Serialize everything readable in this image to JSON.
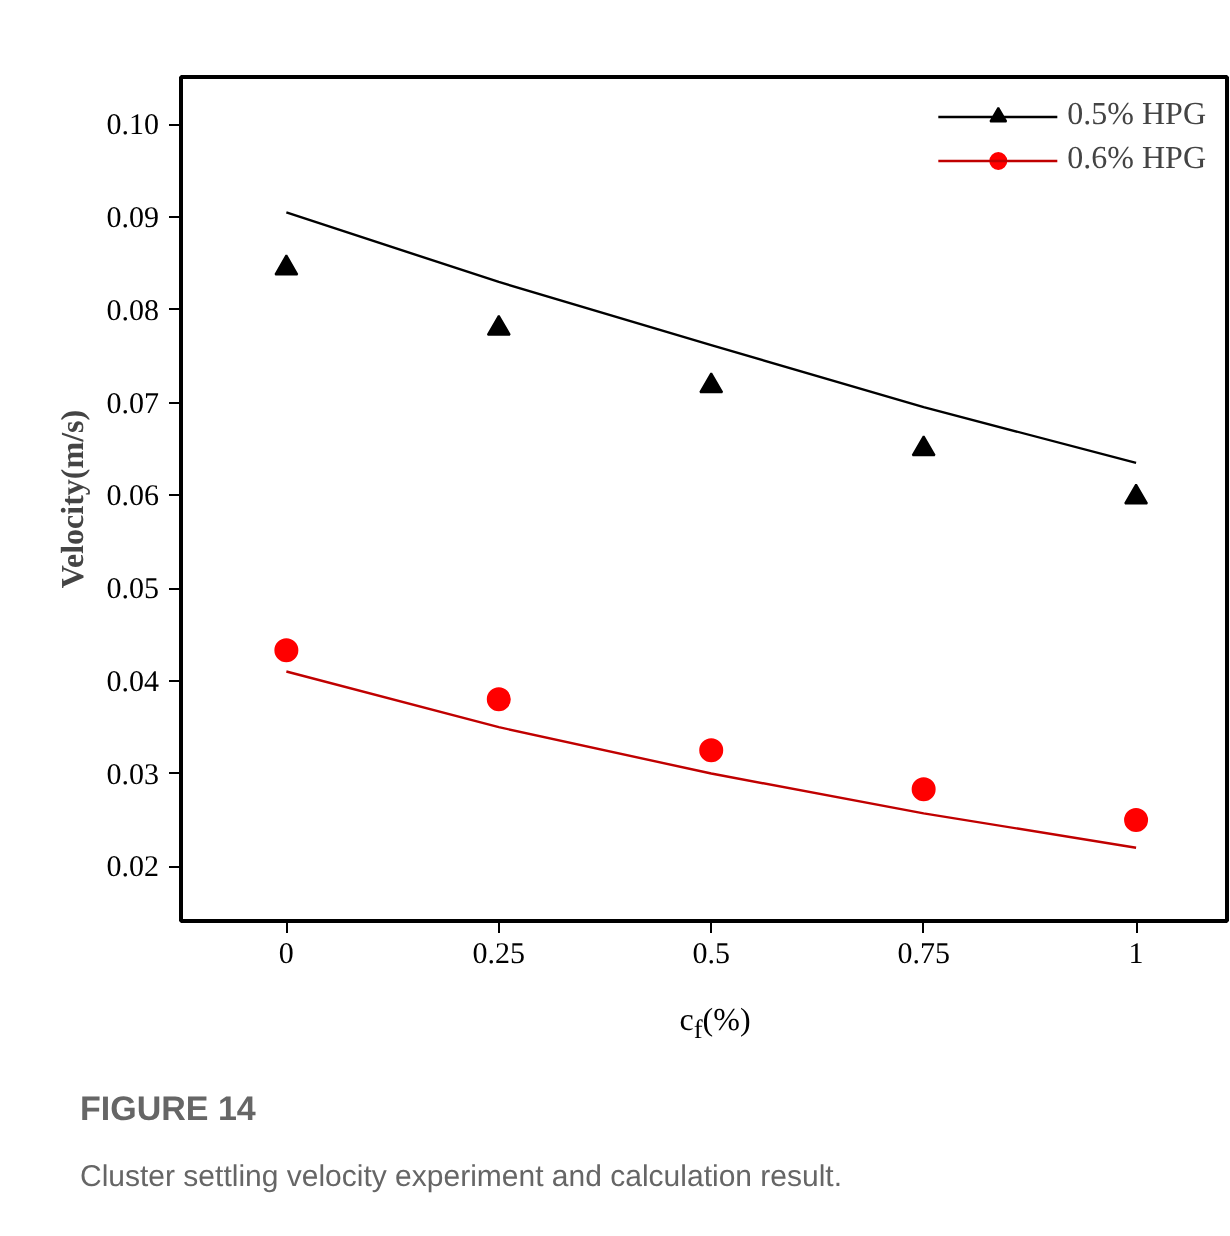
{
  "chart_data": {
    "type": "scatter",
    "xlabel": "c$_{f}$(%)",
    "ylabel": "Velocity(m/s)",
    "xlim": [
      -0.124,
      1.107
    ],
    "ylim": [
      0.0141,
      0.1051
    ],
    "xticks": [
      0,
      0.25,
      0.5,
      0.75,
      1
    ],
    "yticks": [
      0.02,
      0.03,
      0.04,
      0.05,
      0.06,
      0.07,
      0.08,
      0.09,
      {
        "value": 0.1,
        "label": "0.10"
      }
    ],
    "x": [
      0,
      0.25,
      0.5,
      0.75,
      1
    ],
    "series": [
      {
        "name": "0.5% HPG",
        "marker": "triangle",
        "color": "#000000",
        "values": [
          0.0845,
          0.078,
          0.0718,
          0.065,
          0.0598
        ]
      },
      {
        "type": "line",
        "color": "#000000",
        "values": [
          0.0905,
          0.083,
          0.0762,
          0.0695,
          0.0635
        ]
      },
      {
        "name": "0.6% HPG",
        "marker": "circle",
        "color": "#ff0000",
        "values": [
          0.0433,
          0.038,
          0.0325,
          0.0283,
          0.025
        ]
      },
      {
        "type": "line",
        "color": "#c00000",
        "values": [
          0.041,
          0.035,
          0.03,
          0.0257,
          0.022
        ]
      }
    ],
    "grid": false,
    "legend": "top right",
    "annotations": [
      "FIGURE 14",
      "Cluster settling velocity experiment and calculation result."
    ]
  }
}
